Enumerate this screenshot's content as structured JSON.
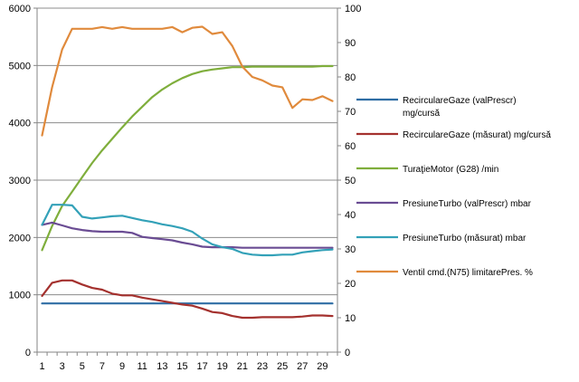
{
  "chart_data": {
    "type": "line",
    "title": "",
    "xlabel": "",
    "ylabel_left": "",
    "ylabel_right": "",
    "x": [
      1,
      2,
      3,
      4,
      5,
      6,
      7,
      8,
      9,
      10,
      11,
      12,
      13,
      14,
      15,
      16,
      17,
      18,
      19,
      20,
      21,
      22,
      23,
      24,
      25,
      26,
      27,
      28,
      29,
      30
    ],
    "x_tick_labels": [
      "1",
      "3",
      "5",
      "7",
      "9",
      "11",
      "13",
      "15",
      "17",
      "19",
      "21",
      "23",
      "25",
      "27",
      "29"
    ],
    "ylim_left": [
      0,
      6000
    ],
    "y_ticks_left": [
      "0",
      "1000",
      "2000",
      "3000",
      "4000",
      "5000",
      "6000"
    ],
    "ylim_right": [
      0,
      100
    ],
    "y_ticks_right": [
      "0",
      "10",
      "20",
      "30",
      "40",
      "50",
      "60",
      "70",
      "80",
      "90",
      "100"
    ],
    "grid": "horizontal major gridlines",
    "legend_position": "right",
    "series": [
      {
        "name": "RecirculareGaze (valPrescr) mg/cursă",
        "legend_lines": [
          "RecirculareGaze (valPrescr)",
          "mg/cursă"
        ],
        "color": "#2E6DA4",
        "axis": "left",
        "values": [
          850,
          850,
          850,
          850,
          850,
          850,
          850,
          850,
          850,
          850,
          850,
          850,
          850,
          850,
          850,
          850,
          850,
          850,
          850,
          850,
          850,
          850,
          850,
          850,
          850,
          850,
          850,
          850,
          850,
          850
        ]
      },
      {
        "name": "RecirculareGaze (măsurat) mg/cursă",
        "legend_lines": [
          "RecirculareGaze (măsurat)  mg/cursă"
        ],
        "color": "#A4312E",
        "axis": "left",
        "values": [
          980,
          1210,
          1250,
          1250,
          1180,
          1120,
          1090,
          1020,
          990,
          990,
          950,
          920,
          890,
          860,
          830,
          810,
          760,
          700,
          680,
          630,
          600,
          600,
          610,
          610,
          610,
          610,
          620,
          640,
          640,
          630
        ]
      },
      {
        "name": "TuraţieMotor (G28) /min",
        "legend_lines": [
          "TuraţieMotor (G28)  /min"
        ],
        "color": "#7FAE3C",
        "axis": "left",
        "values": [
          1780,
          2200,
          2550,
          2800,
          3050,
          3300,
          3520,
          3720,
          3920,
          4110,
          4280,
          4450,
          4580,
          4690,
          4780,
          4850,
          4900,
          4930,
          4950,
          4970,
          4970,
          4980,
          4980,
          4980,
          4980,
          4980,
          4980,
          4980,
          4990,
          4990
        ]
      },
      {
        "name": "PresiuneTurbo (valPrescr) mbar",
        "legend_lines": [
          "PresiuneTurbo (valPrescr)  mbar"
        ],
        "color": "#6A4C93",
        "axis": "left",
        "values": [
          2220,
          2260,
          2210,
          2160,
          2130,
          2110,
          2100,
          2100,
          2100,
          2080,
          2010,
          1990,
          1970,
          1950,
          1910,
          1880,
          1840,
          1830,
          1830,
          1830,
          1820,
          1820,
          1820,
          1820,
          1820,
          1820,
          1820,
          1820,
          1820,
          1820
        ]
      },
      {
        "name": "PresiuneTurbo (măsurat) mbar",
        "legend_lines": [
          "PresiuneTurbo (măsurat)  mbar"
        ],
        "color": "#33A1B8",
        "axis": "left",
        "values": [
          2220,
          2570,
          2570,
          2560,
          2360,
          2330,
          2350,
          2370,
          2380,
          2340,
          2300,
          2270,
          2230,
          2200,
          2160,
          2100,
          1980,
          1880,
          1830,
          1800,
          1730,
          1700,
          1690,
          1690,
          1700,
          1700,
          1740,
          1760,
          1780,
          1790
        ]
      },
      {
        "name": "Ventil cmd.(N75) limitarePres. %",
        "legend_lines": [
          "Ventil cmd.(N75) limitarePres.  %"
        ],
        "color": "#E08A3C",
        "axis": "right",
        "values": [
          63,
          77,
          88,
          94,
          94,
          94,
          94.5,
          94,
          94.5,
          94,
          94,
          94,
          94,
          94.5,
          93,
          94.3,
          94.6,
          92.5,
          93,
          89,
          83,
          80,
          79,
          77.5,
          77,
          71,
          73.5,
          73.3,
          74.4,
          73
        ]
      }
    ]
  }
}
